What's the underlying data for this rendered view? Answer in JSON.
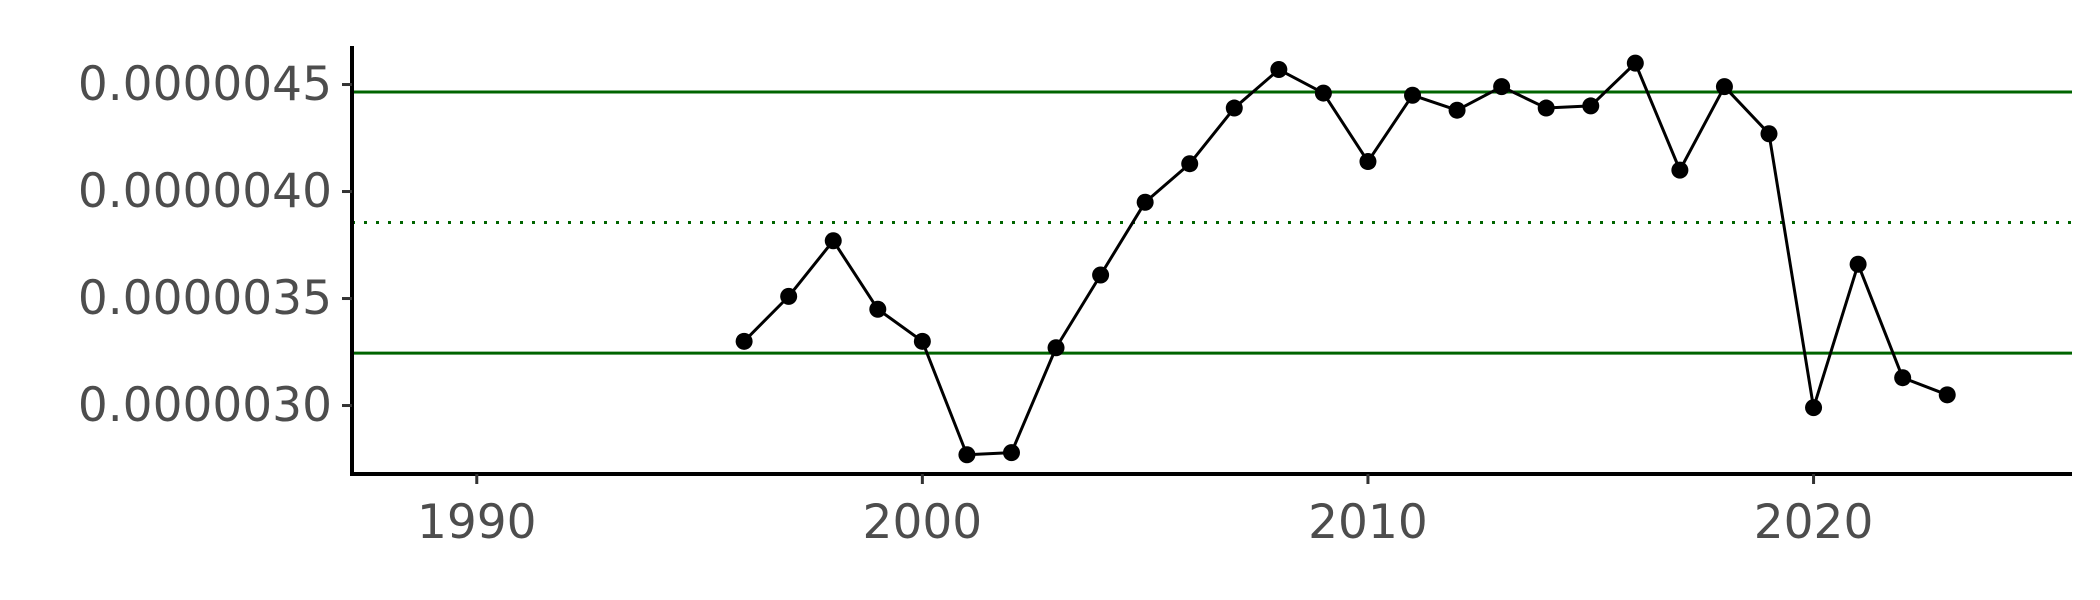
{
  "chart_data": {
    "type": "line",
    "title": "",
    "xlabel": "",
    "ylabel": "",
    "xlim": [
      1987.2,
      2025.8
    ],
    "ylim": [
      2.68e-06,
      4.68e-06
    ],
    "x_ticks": [
      1990,
      2000,
      2010,
      2020
    ],
    "x_tick_labels": [
      "1990",
      "2000",
      "2010",
      "2020"
    ],
    "y_ticks": [
      3e-06,
      3.5e-06,
      4e-06,
      4.5e-06
    ],
    "y_tick_labels": [
      "0.0000030",
      "0.0000035",
      "0.0000040",
      "0.0000045"
    ],
    "grid": false,
    "series": [
      {
        "x": [
          1996,
          1997,
          1998,
          1999,
          2000,
          2001,
          2002,
          2003,
          2004,
          2005,
          2006,
          2007,
          2008,
          2009,
          2010,
          2011,
          2012,
          2013,
          2014,
          2015,
          2016,
          2017,
          2018,
          2019,
          2020,
          2021,
          2022,
          2023
        ],
        "values": [
          3.3e-06,
          3.51e-06,
          3.77e-06,
          3.45e-06,
          3.3e-06,
          2.77e-06,
          2.78e-06,
          3.27e-06,
          3.61e-06,
          3.95e-06,
          4.13e-06,
          4.39e-06,
          4.57e-06,
          4.46e-06,
          4.14e-06,
          4.45e-06,
          4.38e-06,
          4.49e-06,
          4.39e-06,
          4.4e-06,
          4.6e-06,
          4.1e-06,
          4.49e-06,
          4.27e-06,
          2.99e-06,
          3.66e-06,
          3.13e-06,
          3.05e-06
        ],
        "color": "#000000"
      }
    ],
    "reference_lines": [
      {
        "y": 4.465e-06,
        "style": "solid",
        "color": "#006400"
      },
      {
        "y": 3.855e-06,
        "style": "dotted",
        "color": "#006400"
      },
      {
        "y": 3.245e-06,
        "style": "solid",
        "color": "#006400"
      }
    ]
  }
}
